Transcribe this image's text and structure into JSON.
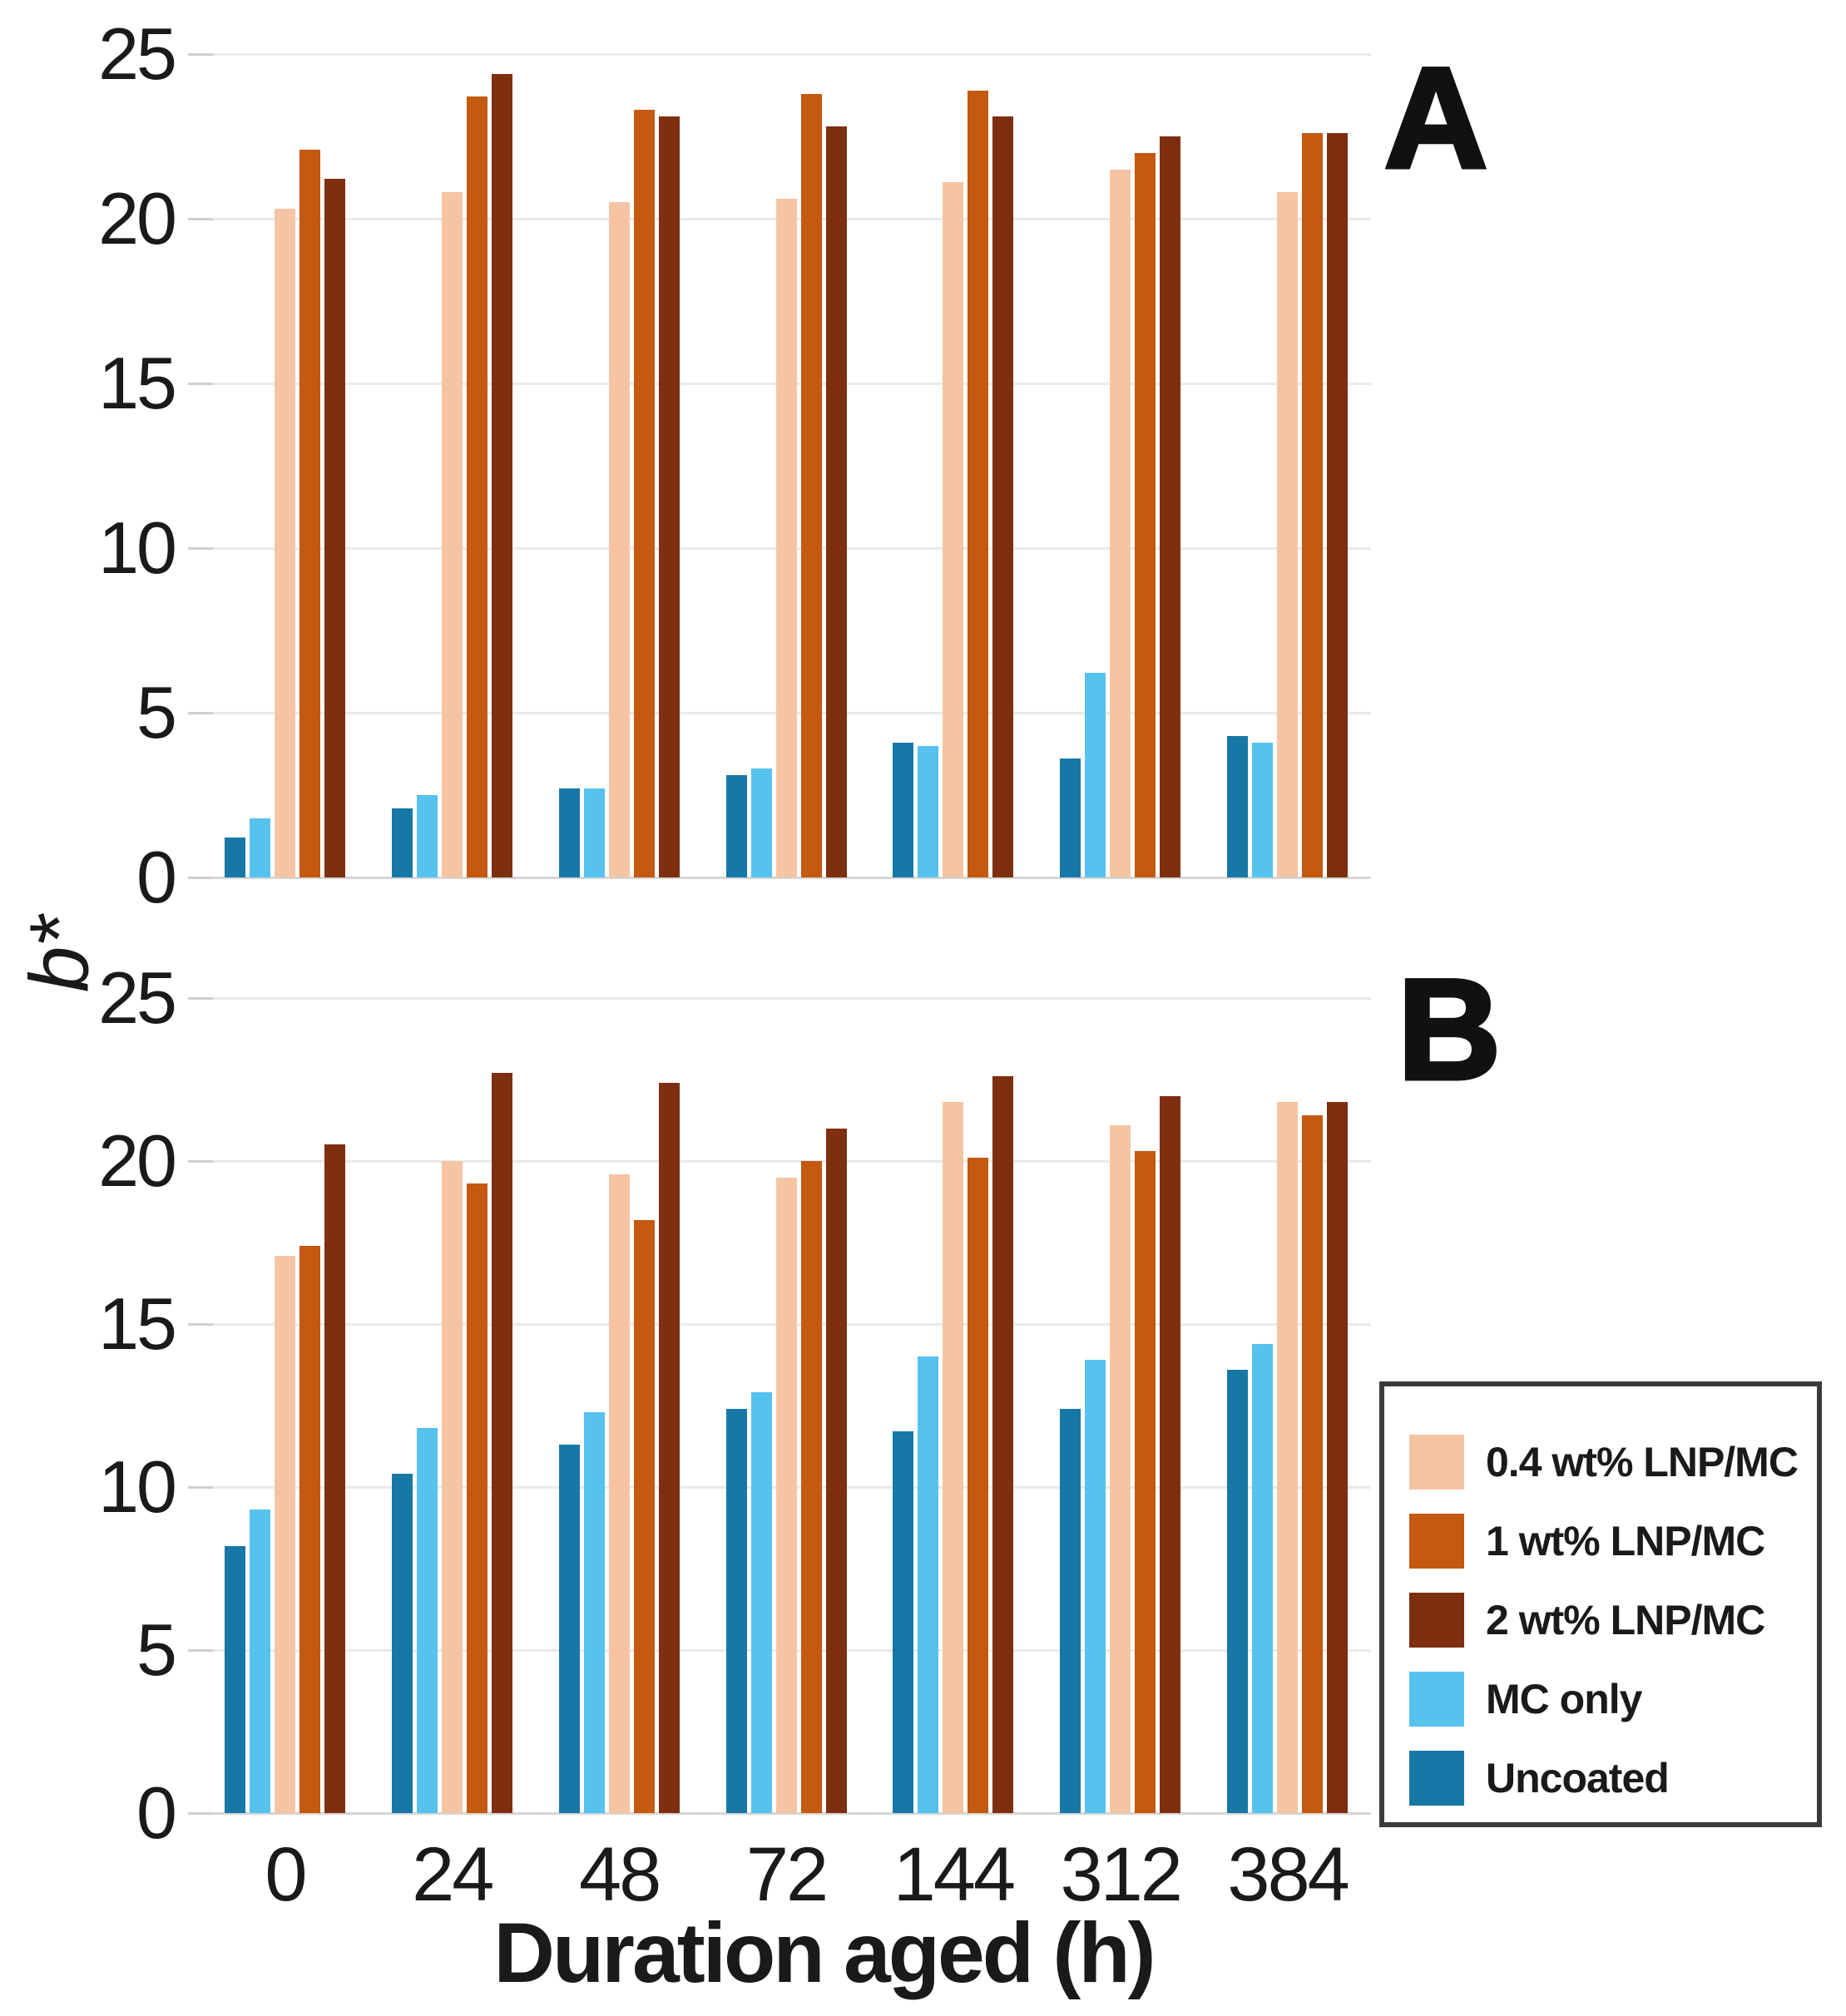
{
  "figure": {
    "ylabel": "b*",
    "xlabel": "Duration aged (h)",
    "background": "#ffffff",
    "gridline_color": "#e9e9e9",
    "text_color": "#1a1a1a"
  },
  "panels": [
    {
      "id": "A",
      "label": "A"
    },
    {
      "id": "B",
      "label": "B"
    }
  ],
  "legend": {
    "position": "bottom-right",
    "border_color": "#3a3a3a",
    "items": [
      {
        "label": "0.4 wt% LNP/MC",
        "color": "#f5c5a3"
      },
      {
        "label": "1 wt% LNP/MC",
        "color": "#c45911"
      },
      {
        "label": "2 wt% LNP/MC",
        "color": "#7d2f10"
      },
      {
        "label": "MC only",
        "color": "#56c2ee"
      },
      {
        "label": "Uncoated",
        "color": "#1878a5"
      }
    ]
  },
  "chart_data": [
    {
      "type": "bar",
      "panel": "A",
      "categories": [
        "0",
        "24",
        "48",
        "72",
        "144",
        "312",
        "384"
      ],
      "xlabel": "Duration aged (h)",
      "ylabel": "b*",
      "ylim": [
        0,
        25
      ],
      "yticks": [
        0,
        5,
        10,
        15,
        20,
        25
      ],
      "grid": true,
      "series": [
        {
          "name": "Uncoated",
          "color": "#1878a5",
          "values": [
            1.2,
            2.1,
            2.7,
            3.1,
            4.1,
            3.6,
            4.3
          ]
        },
        {
          "name": "MC only",
          "color": "#56c2ee",
          "values": [
            1.8,
            2.5,
            2.7,
            3.3,
            4.0,
            6.2,
            4.1
          ]
        },
        {
          "name": "0.4 wt% LNP/MC",
          "color": "#f5c5a3",
          "values": [
            20.3,
            20.8,
            20.5,
            20.6,
            21.1,
            21.5,
            20.8
          ]
        },
        {
          "name": "1 wt% LNP/MC",
          "color": "#c45911",
          "values": [
            22.1,
            23.7,
            23.3,
            23.8,
            23.9,
            22.0,
            22.6
          ]
        },
        {
          "name": "2 wt% LNP/MC",
          "color": "#7d2f10",
          "values": [
            21.2,
            24.4,
            23.1,
            22.8,
            23.1,
            22.5,
            22.6
          ]
        }
      ]
    },
    {
      "type": "bar",
      "panel": "B",
      "categories": [
        "0",
        "24",
        "48",
        "72",
        "144",
        "312",
        "384"
      ],
      "xlabel": "Duration aged (h)",
      "ylabel": "b*",
      "ylim": [
        0,
        25
      ],
      "yticks": [
        0,
        5,
        10,
        15,
        20,
        25
      ],
      "grid": true,
      "series": [
        {
          "name": "Uncoated",
          "color": "#1878a5",
          "values": [
            8.2,
            10.4,
            11.3,
            12.4,
            11.7,
            12.4,
            13.6
          ]
        },
        {
          "name": "MC only",
          "color": "#56c2ee",
          "values": [
            9.3,
            11.8,
            12.3,
            12.9,
            14.0,
            13.9,
            14.4
          ]
        },
        {
          "name": "0.4 wt% LNP/MC",
          "color": "#f5c5a3",
          "values": [
            17.1,
            20.0,
            19.6,
            19.5,
            21.8,
            21.1,
            21.8
          ]
        },
        {
          "name": "1 wt% LNP/MC",
          "color": "#c45911",
          "values": [
            17.4,
            19.3,
            18.2,
            20.0,
            20.1,
            20.3,
            21.4
          ]
        },
        {
          "name": "2 wt% LNP/MC",
          "color": "#7d2f10",
          "values": [
            20.5,
            22.7,
            22.4,
            21.0,
            22.6,
            22.0,
            21.8
          ]
        }
      ]
    }
  ]
}
